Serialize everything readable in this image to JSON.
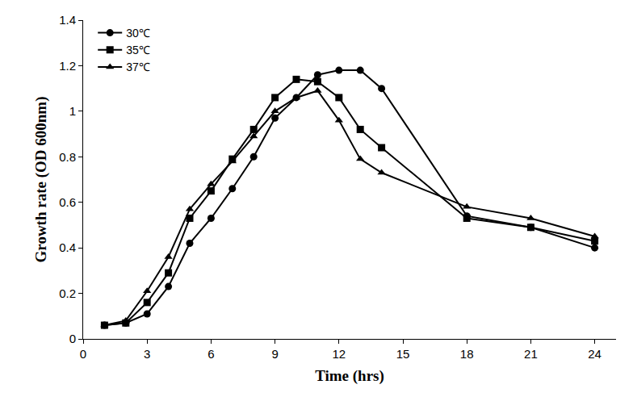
{
  "chart_data": {
    "type": "line",
    "x_label": "Time (hrs)",
    "y_label": "Growth rate (OD 600nm)",
    "xlim": [
      0,
      25
    ],
    "xticks": [
      0,
      3,
      6,
      9,
      12,
      15,
      18,
      21,
      24
    ],
    "ylim": [
      0,
      1.4
    ],
    "yticks": [
      0,
      0.2,
      0.4,
      0.6,
      0.8,
      1,
      1.2,
      1.4
    ],
    "grid": false,
    "legend": "top-left",
    "x": [
      1,
      2,
      3,
      4,
      5,
      6,
      7,
      8,
      9,
      10,
      11,
      12,
      13,
      14,
      18,
      21,
      24
    ],
    "series": [
      {
        "name": "30℃",
        "color": "#000000",
        "marker": "circle",
        "line_style": "solid",
        "values": [
          0.06,
          0.07,
          0.11,
          0.23,
          0.42,
          0.53,
          0.66,
          0.8,
          0.97,
          1.06,
          1.16,
          1.18,
          1.18,
          1.1,
          0.54,
          0.49,
          0.4
        ]
      },
      {
        "name": "35℃",
        "color": "#000000",
        "marker": "square",
        "line_style": "solid",
        "values": [
          0.06,
          0.07,
          0.16,
          0.29,
          0.53,
          0.65,
          0.79,
          0.92,
          1.06,
          1.14,
          1.13,
          1.06,
          0.92,
          0.84,
          0.53,
          0.49,
          0.43
        ]
      },
      {
        "name": "37℃",
        "color": "#000000",
        "marker": "triangle-up",
        "line_style": "solid",
        "values": [
          0.06,
          0.08,
          0.21,
          0.36,
          0.57,
          0.68,
          0.78,
          0.89,
          1.0,
          1.06,
          1.09,
          0.96,
          0.79,
          0.73,
          0.58,
          0.53,
          0.45
        ]
      }
    ]
  }
}
